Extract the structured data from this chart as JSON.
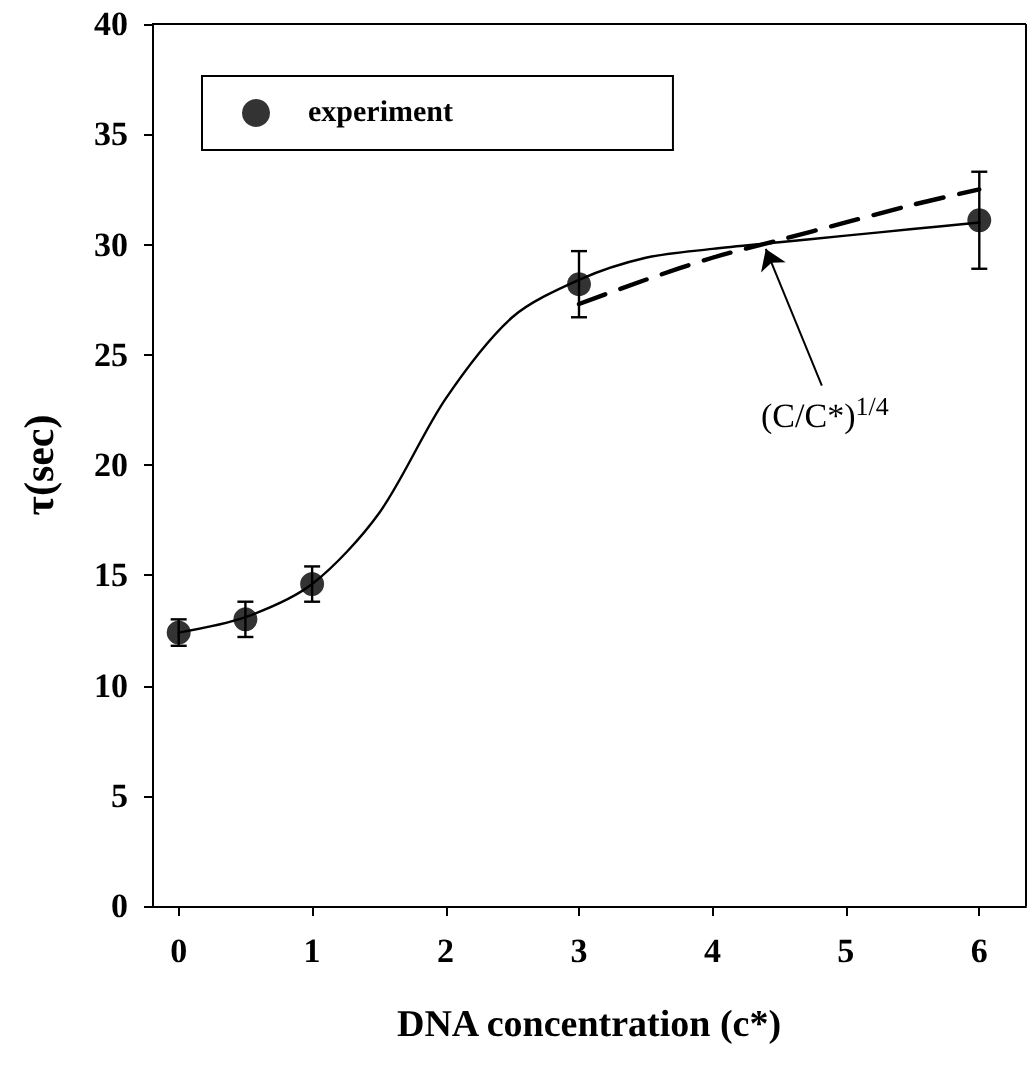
{
  "chart_data": {
    "type": "scatter",
    "xlabel": "DNA concentration (c*)",
    "ylabel": "τ(sec)",
    "xlim": [
      -0.2,
      6.35
    ],
    "xticks": [
      0,
      1,
      2,
      3,
      4,
      5,
      6
    ],
    "ylim": [
      0,
      40
    ],
    "yticks": [
      0,
      5,
      10,
      15,
      20,
      25,
      30,
      35,
      40
    ],
    "grid": false,
    "legend": "top left",
    "annotations": [
      {
        "text": "(C/C*)$^{1/4}$",
        "x": 4.4,
        "y": 29.8
      }
    ],
    "series": [
      {
        "name": "experiment",
        "color": "#000000",
        "marker": "circle",
        "x": [
          0,
          0.5,
          1,
          3,
          6
        ],
        "values": [
          12.4,
          13.0,
          14.6,
          28.2,
          31.1
        ],
        "errors": [
          0.6,
          0.8,
          0.8,
          1.5,
          2.2
        ]
      },
      {
        "type": "line",
        "color": "#000000",
        "line_style": "solid",
        "marker": "none",
        "x": [
          0,
          0.5,
          1,
          1.5,
          2,
          2.5,
          3,
          3.5,
          4,
          4.5,
          5,
          5.5,
          6
        ],
        "values": [
          12.4,
          13.1,
          14.6,
          17.8,
          23.0,
          26.7,
          28.4,
          29.4,
          29.8,
          30.1,
          30.4,
          30.7,
          31.0
        ]
      },
      {
        "type": "line",
        "color": "#000000",
        "line_style": "dashed",
        "marker": "none",
        "x": [
          3,
          3.5,
          4,
          4.5,
          5,
          5.5,
          6
        ],
        "values": [
          27.3,
          28.4,
          29.4,
          30.2,
          31.0,
          31.8,
          32.5
        ]
      }
    ]
  }
}
